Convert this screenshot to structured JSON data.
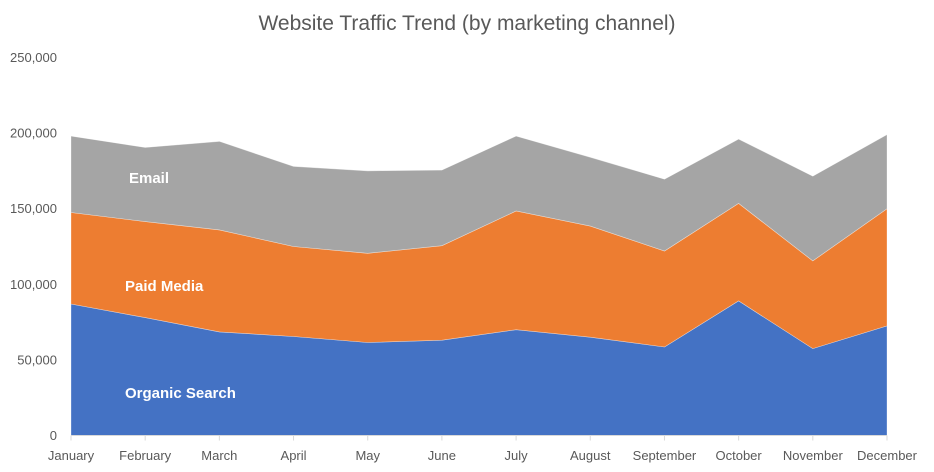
{
  "chart_data": {
    "type": "area",
    "stacked": true,
    "title": "Website Traffic Trend (by marketing channel)",
    "xlabel": "",
    "ylabel": "",
    "categories": [
      "January",
      "February",
      "March",
      "April",
      "May",
      "June",
      "July",
      "August",
      "September",
      "October",
      "November",
      "December"
    ],
    "series": [
      {
        "name": "Organic Search",
        "color": "#4472C4",
        "values": [
          87000,
          78000,
          68500,
          65500,
          61500,
          63000,
          70000,
          65000,
          58500,
          89000,
          57500,
          72500
        ]
      },
      {
        "name": "Paid Media",
        "color": "#ED7D31",
        "values": [
          60500,
          63500,
          67500,
          59500,
          59000,
          62500,
          78500,
          73500,
          63500,
          64500,
          58000,
          77500
        ]
      },
      {
        "name": "Email",
        "color": "#A5A5A5",
        "values": [
          50500,
          49000,
          58500,
          53000,
          54500,
          50000,
          49500,
          45500,
          47500,
          42500,
          56000,
          49000
        ]
      }
    ],
    "ylim": [
      0,
      250000
    ],
    "yticks": [
      0,
      50000,
      100000,
      150000,
      200000,
      250000
    ],
    "ytick_labels": [
      "0",
      "50,000",
      "100,000",
      "150,000",
      "200,000",
      "250,000"
    ],
    "grid": false,
    "legend": "none (series labeled inside areas)"
  }
}
